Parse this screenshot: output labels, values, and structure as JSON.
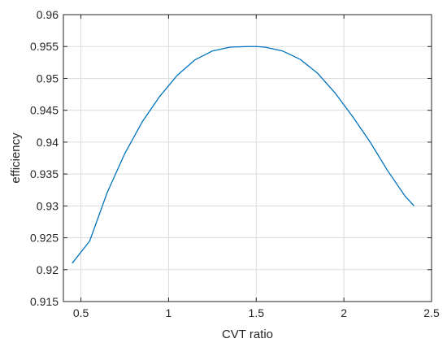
{
  "chart_data": {
    "type": "line",
    "title": "",
    "xlabel": "CVT ratio",
    "ylabel": "efficiency",
    "xlim": [
      0.4,
      2.5
    ],
    "ylim": [
      0.915,
      0.96
    ],
    "xticks": [
      0.5,
      1,
      1.5,
      2,
      2.5
    ],
    "xtick_labels": [
      "0.5",
      "1",
      "1.5",
      "2",
      "2.5"
    ],
    "yticks": [
      0.915,
      0.92,
      0.925,
      0.93,
      0.935,
      0.94,
      0.945,
      0.95,
      0.955,
      0.96
    ],
    "ytick_labels": [
      "0.915",
      "0.92",
      "0.925",
      "0.93",
      "0.935",
      "0.94",
      "0.945",
      "0.95",
      "0.955",
      "0.96"
    ],
    "grid": true,
    "legend": "none",
    "series": [
      {
        "color": "#0072BD",
        "x": [
          0.45,
          0.55,
          0.65,
          0.75,
          0.85,
          0.95,
          1.05,
          1.15,
          1.25,
          1.35,
          1.45,
          1.5,
          1.55,
          1.65,
          1.75,
          1.85,
          1.95,
          2.05,
          2.15,
          2.25,
          2.35,
          2.4
        ],
        "y": [
          0.921,
          0.9245,
          0.9321,
          0.9382,
          0.9432,
          0.9472,
          0.9505,
          0.9529,
          0.9543,
          0.9549,
          0.955,
          0.955,
          0.9549,
          0.9543,
          0.953,
          0.9508,
          0.9477,
          0.944,
          0.94,
          0.9355,
          0.9315,
          0.93
        ]
      }
    ]
  }
}
